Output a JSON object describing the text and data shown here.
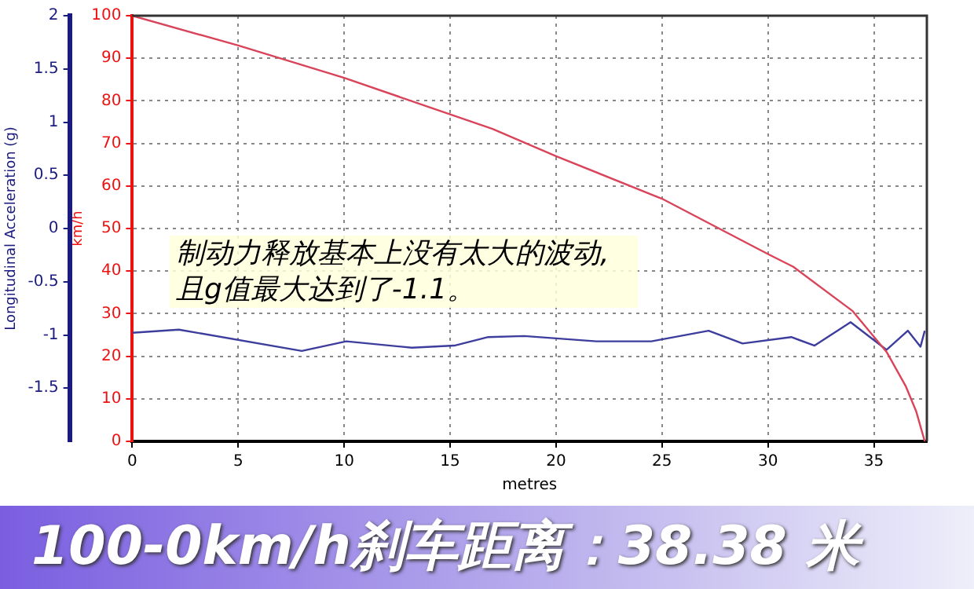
{
  "chart_data": {
    "type": "line",
    "xlabel": "metres",
    "ylabel": "km/h",
    "y2label": "Longitudinal Acceleration (g)",
    "annotations": [
      "制动力释放基本上没有太大的波动, 且g值最大达到了-1.1。",
      "100-0km/h刹车距离：38.38 米"
    ],
    "xlim": [
      0,
      37.5
    ],
    "xticks": [
      0,
      5,
      10,
      15,
      20,
      25,
      30,
      35
    ],
    "ylim": [
      0,
      100
    ],
    "yticks": [
      0,
      10,
      20,
      30,
      40,
      50,
      60,
      70,
      80,
      90,
      100
    ],
    "y2lim": [
      -2,
      2
    ],
    "y2ticks": [
      -1.5,
      -1,
      -0.5,
      0,
      0.5,
      1,
      1.5,
      2
    ],
    "grid": true,
    "legend": false,
    "marker": "none",
    "line_style": "solid",
    "series": [
      {
        "color": "#d9445a",
        "x": [
          0,
          5,
          10,
          17,
          20,
          25,
          30,
          31.2,
          34,
          35.6,
          36.5,
          37,
          37.4
        ],
        "values": [
          100,
          93,
          85.4,
          73.4,
          67,
          57,
          44,
          41,
          30.6,
          21,
          13,
          7,
          0
        ]
      },
      {
        "color": "#3d3d9e",
        "axis": "y2",
        "x": [
          0,
          2.2,
          8,
          10.1,
          13.2,
          15.2,
          16.8,
          18.5,
          21.9,
          24.5,
          27.2,
          28.8,
          31.1,
          32.2,
          33.9,
          35.6,
          36.6,
          37.2,
          37.4
        ],
        "values": [
          -0.98,
          -0.95,
          -1.15,
          -1.06,
          -1.12,
          -1.1,
          -1.02,
          -1.01,
          -1.06,
          -1.06,
          -0.96,
          -1.08,
          -1.02,
          -1.1,
          -0.88,
          -1.14,
          -0.96,
          -1.11,
          -0.96
        ]
      }
    ]
  }
}
